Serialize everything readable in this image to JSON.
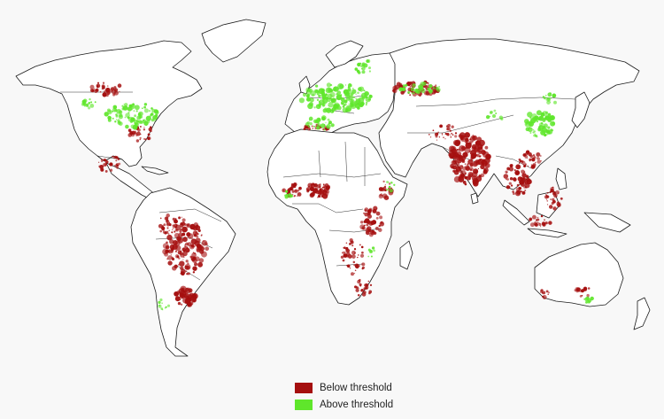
{
  "legend": {
    "items": [
      {
        "label": "Below threshold",
        "color": "#a50f0f"
      },
      {
        "label": "Above threshold",
        "color": "#5fe62b"
      }
    ]
  },
  "colors": {
    "below": "#a50f0f",
    "above": "#5fe62b",
    "land": "#ffffff",
    "outline": "#1a1a1a",
    "background": "#f8f8f8"
  }
}
